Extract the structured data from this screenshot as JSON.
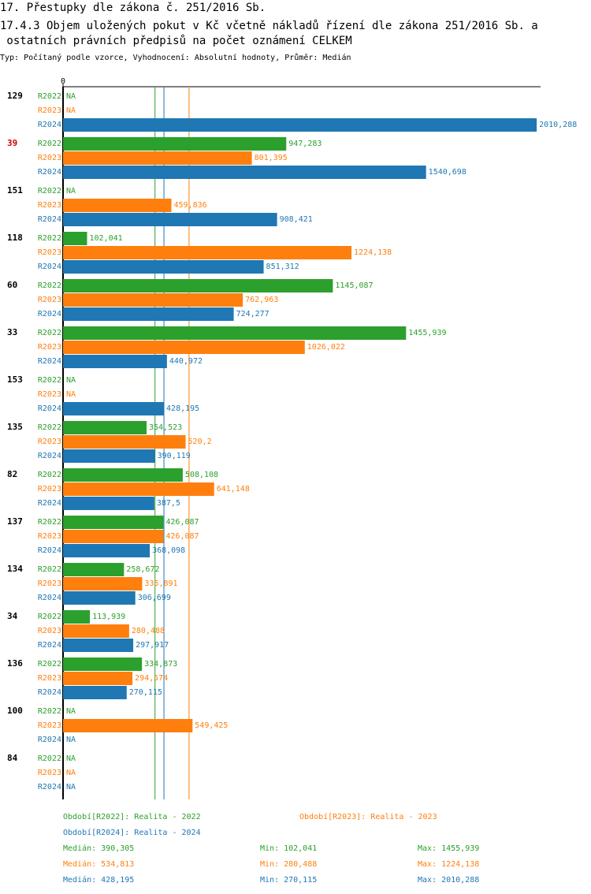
{
  "chart_data": {
    "type": "hbar",
    "title": "17. Přestupky dle zákona č. 251/2016 Sb.",
    "subtitle": [
      "17.4.3 Objem uložených pokut v Kč včetně nákladů řízení dle zákona 251/2016 Sb. a",
      " ostatních právních předpisů na počet oznámení CELKEM"
    ],
    "note": "Typ: Počítaný podle vzorce, Vyhodnocení: Absolutní hodnoty, Průměr: Medián",
    "categories": [
      "129",
      "39",
      "151",
      "118",
      "60",
      "33",
      "153",
      "135",
      "82",
      "137",
      "134",
      "34",
      "136",
      "100",
      "84"
    ],
    "highlight": {
      "category": "39",
      "color": "#cc0000"
    },
    "xlim": [
      0,
      2020
    ],
    "xticks": [
      0
    ],
    "stat_labels": [
      "Medián:",
      "Min:",
      "Max:"
    ],
    "series": [
      {
        "name": "R2022",
        "color": "#2ca02c",
        "legend": "Období[R2022]: Realita - 2022",
        "values": [
          null,
          947.283,
          null,
          102.041,
          1145.087,
          1455.939,
          null,
          354.523,
          508.108,
          426.087,
          258.672,
          113.939,
          334.873,
          null,
          null
        ],
        "value_labels": [
          "NA",
          "947,283",
          "NA",
          "102,041",
          "1145,087",
          "1455,939",
          "NA",
          "354,523",
          "508,108",
          "426,087",
          "258,672",
          "113,939",
          "334,873",
          "NA",
          "NA"
        ],
        "median": 390.305,
        "median_label": "390,305",
        "min": 102.041,
        "min_label": "102,041",
        "max": 1455.939,
        "max_label": "1455,939"
      },
      {
        "name": "R2023",
        "color": "#ff7f0e",
        "legend": "Období[R2023]: Realita - 2023",
        "values": [
          null,
          801.395,
          459.836,
          1224.138,
          762.963,
          1026.022,
          null,
          520.2,
          641.148,
          426.087,
          335.891,
          280.488,
          294.574,
          549.425,
          null
        ],
        "value_labels": [
          "NA",
          "801,395",
          "459,836",
          "1224,138",
          "762,963",
          "1026,022",
          "NA",
          "520,2",
          "641,148",
          "426,087",
          "335,891",
          "280,488",
          "294,574",
          "549,425",
          "NA"
        ],
        "median": 534.813,
        "median_label": "534,813",
        "min": 280.488,
        "min_label": "280,488",
        "max": 1224.138,
        "max_label": "1224,138"
      },
      {
        "name": "R2024",
        "color": "#1f77b4",
        "legend": "Období[R2024]: Realita - 2024",
        "values": [
          2010.288,
          1540.698,
          908.421,
          851.312,
          724.277,
          440.972,
          428.195,
          390.119,
          387.5,
          368.098,
          306.699,
          297.917,
          270.115,
          null,
          null
        ],
        "value_labels": [
          "2010,288",
          "1540,698",
          "908,421",
          "851,312",
          "724,277",
          "440,972",
          "428,195",
          "390,119",
          "387,5",
          "368,098",
          "306,699",
          "297,917",
          "270,115",
          "NA",
          "NA"
        ],
        "median": 428.195,
        "median_label": "428,195",
        "min": 270.115,
        "min_label": "270,115",
        "max": 2010.288,
        "max_label": "2010,288"
      }
    ]
  }
}
